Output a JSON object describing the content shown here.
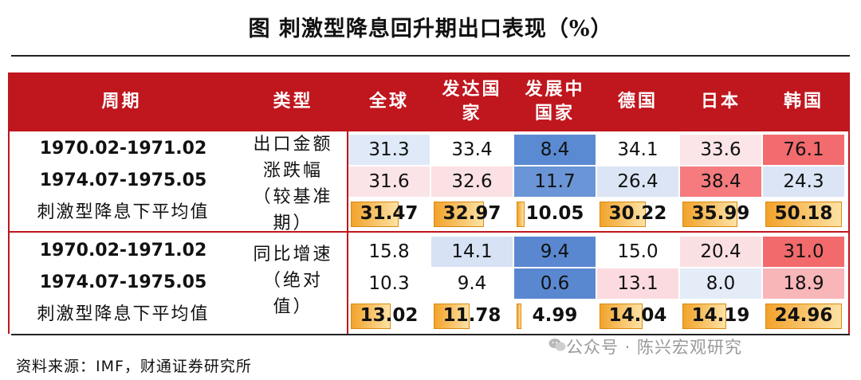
{
  "title": "图  刺激型降息回升期出口表现（%）",
  "headers": {
    "period": "周期",
    "type": "类型",
    "cols": [
      "全球",
      "发达国\n家",
      "发展中\n国家",
      "德国",
      "日本",
      "韩国"
    ]
  },
  "groups": [
    {
      "type_label": "出口金额\n涨跌幅\n（较基准\n期）",
      "rows": [
        {
          "label": "1970.02-1971.02",
          "values": [
            "31.3",
            "33.4",
            "8.4",
            "34.1",
            "33.6",
            "76.1"
          ]
        },
        {
          "label": "1974.07-1975.05",
          "values": [
            "31.6",
            "32.6",
            "11.7",
            "26.4",
            "38.4",
            "24.3"
          ]
        },
        {
          "label": "刺激型降息下平均值",
          "values": [
            "31.47",
            "32.97",
            "10.05",
            "30.22",
            "35.99",
            "50.18"
          ]
        }
      ]
    },
    {
      "type_label": "同比增速\n（绝对\n值）",
      "rows": [
        {
          "label": "1970.02-1971.02",
          "values": [
            "15.8",
            "14.1",
            "9.4",
            "15.0",
            "20.4",
            "31.0"
          ]
        },
        {
          "label": "1974.07-1975.05",
          "values": [
            "10.3",
            "9.4",
            "0.6",
            "13.1",
            "8.0",
            "18.9"
          ]
        },
        {
          "label": "刺激型降息下平均值",
          "values": [
            "13.02",
            "11.78",
            "4.99",
            "14.04",
            "14.19",
            "24.96"
          ]
        }
      ]
    }
  ],
  "heat_colors": [
    [
      "#dfe9f7",
      "#ffffff",
      "#5a8ad2",
      "#ffffff",
      "#fbe5e8",
      "#f26b6e"
    ],
    [
      "#fbe4e7",
      "#fbe1e4",
      "#6a95d6",
      "#dbe5f5",
      "#f57b7e",
      "#dbe5f5"
    ],
    [
      null,
      null,
      null,
      null,
      null,
      null
    ],
    [
      "#ffffff",
      "#d7e2f4",
      "#5a88d0",
      "#ffffff",
      "#fbe0e3",
      "#f26a6c"
    ],
    [
      "#ffffff",
      "#ffffff",
      "#5a88d0",
      "#fbdbe0",
      "#e4ecf8",
      "#f8b6b9"
    ],
    [
      null,
      null,
      null,
      null,
      null,
      null
    ]
  ],
  "avg_bar_fractions": [
    [
      0.63,
      0.66,
      0.1,
      0.6,
      0.72,
      1.0
    ],
    [
      0.52,
      0.47,
      0.0,
      0.56,
      0.57,
      1.0
    ]
  ],
  "source": "资料来源：IMF，财通证券研究所",
  "watermark": "公众号 · 陈兴宏观研究"
}
